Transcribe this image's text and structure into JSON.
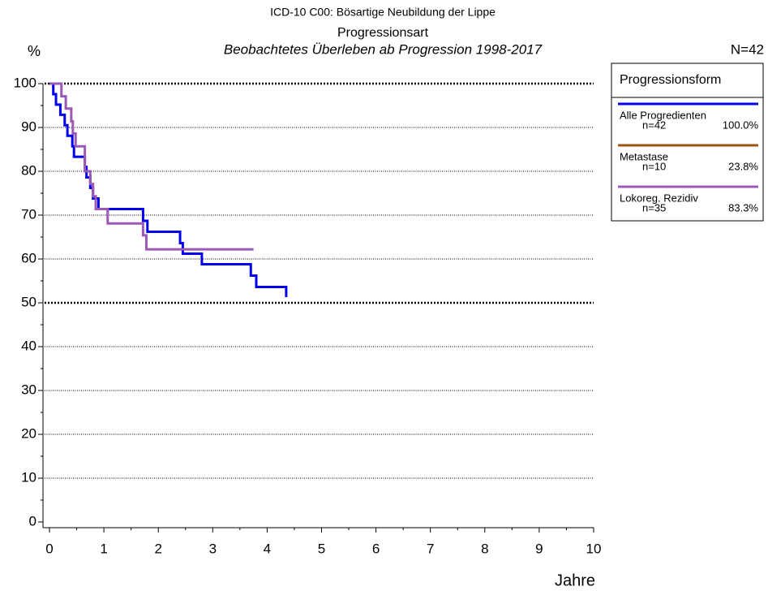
{
  "chart_data": {
    "type": "line",
    "drawstyle": "steps-post",
    "title": "ICD-10 C00: Bösartige Neubildung der Lippe",
    "subtitle": "Progressionsart",
    "subtitle2": "Beobachtetes Überleben ab Progression 1998-2017",
    "ylabel": "%",
    "xlabel": "Jahre",
    "annotation": "N=42",
    "legend_title": "Progressionsform",
    "xlim": [
      0,
      10
    ],
    "xticks": [
      0,
      1,
      2,
      3,
      4,
      5,
      6,
      7,
      8,
      9,
      10
    ],
    "x_minor_ticks": [
      0.5,
      1.5,
      2.5,
      3.5,
      4.5,
      5.5,
      6.5,
      7.5,
      8.5,
      9.5
    ],
    "ylim": [
      0,
      100
    ],
    "yticks": [
      0,
      10,
      20,
      30,
      40,
      50,
      60,
      70,
      80,
      90,
      100
    ],
    "y_minor_ticks": [
      5,
      15,
      25,
      35,
      45,
      55,
      65,
      75,
      85,
      95
    ],
    "grid": true,
    "bold_grid": [
      50,
      100
    ],
    "series": [
      {
        "name": "Alle Progredienten",
        "legend_n": "n=42",
        "legend_percent": "100.0%",
        "color": "#0000ee",
        "x": [
          0,
          0.07,
          0.12,
          0.2,
          0.28,
          0.33,
          0.42,
          0.45,
          0.65,
          0.68,
          0.75,
          0.8,
          0.9,
          1.72,
          1.8,
          2.4,
          2.45,
          2.8,
          3.7,
          3.8,
          4.35
        ],
        "values": [
          100,
          97.6,
          95.2,
          92.9,
          90.5,
          88.1,
          85.7,
          83.3,
          81.0,
          78.6,
          76.2,
          73.8,
          71.4,
          68.7,
          66.2,
          63.6,
          61.2,
          58.8,
          56.2,
          53.6,
          51.3
        ]
      },
      {
        "name": "Metastase",
        "legend_n": "n=10",
        "legend_percent": "23.8%",
        "color": "#9c5414",
        "x": [],
        "values": []
      },
      {
        "name": "Lokoreg. Rezidiv",
        "legend_n": "n=35",
        "legend_percent": "83.3%",
        "color": "#9b59b6",
        "x": [
          0,
          0.22,
          0.3,
          0.4,
          0.43,
          0.48,
          0.65,
          0.75,
          0.8,
          0.85,
          1.07,
          1.72,
          1.78,
          3.75
        ],
        "values": [
          100,
          97.1,
          94.3,
          91.4,
          88.6,
          85.7,
          80.0,
          77.1,
          74.3,
          71.4,
          68.1,
          65.4,
          62.2,
          62.2
        ]
      }
    ]
  }
}
